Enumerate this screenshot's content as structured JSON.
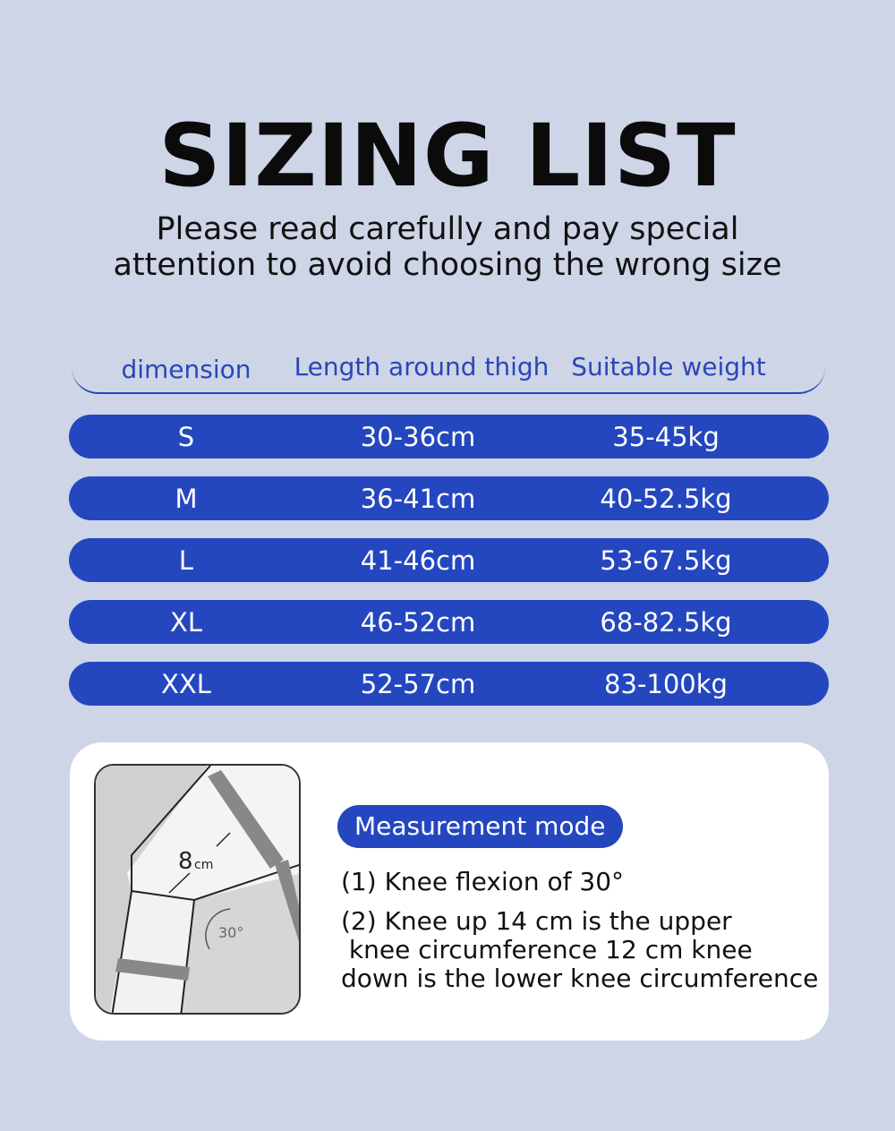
{
  "title": "SIZING LIST",
  "subtitle": [
    "Please read carefully and pay special",
    "attention to avoid choosing the wrong size"
  ],
  "table": {
    "headers": [
      "dimension",
      "Length around thigh",
      "Suitable weight"
    ],
    "rows": [
      [
        "S",
        "30-36cm",
        "35-45kg"
      ],
      [
        "M",
        "36-41cm",
        "40-52.5kg"
      ],
      [
        "L",
        "41-46cm",
        "53-67.5kg"
      ],
      [
        "XL",
        "46-52cm",
        "68-82.5kg"
      ],
      [
        "XXL",
        "52-57cm",
        "83-100kg"
      ]
    ]
  },
  "measurement": {
    "badge": "Measurement mode",
    "step1": "(1) Knee flexion of 30°",
    "step2": [
      "(2) Knee up 14 cm is the upper",
      " knee circumference 12 cm knee",
      "down is the lower knee circumference"
    ],
    "illustration": {
      "distance_label": "8",
      "unit_label": "cm",
      "angle_label": "30°"
    }
  },
  "colors": {
    "accent": "#2447c0",
    "background": "#cdd5e6"
  }
}
